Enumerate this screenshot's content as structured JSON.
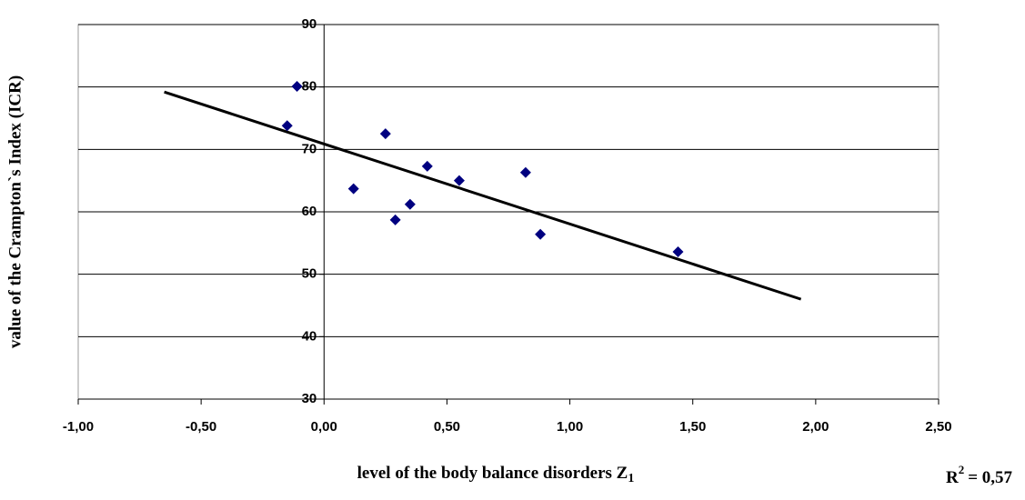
{
  "chart_data": {
    "type": "scatter",
    "x_label": "level of the body balance disorders Z",
    "x_label_subscript": "1",
    "y_label": "value of the Crampton`s Index (ICR)",
    "annotation": {
      "text": "R",
      "superscript": "2",
      "rest": "= 0,57"
    },
    "x": [
      -0.11,
      -0.15,
      0.12,
      0.25,
      0.29,
      0.35,
      0.42,
      0.55,
      0.82,
      0.88,
      1.44
    ],
    "series": [
      {
        "color": "#000080",
        "values": [
          80.1,
          73.8,
          63.7,
          72.5,
          58.7,
          61.2,
          67.3,
          65,
          66.3,
          56.4,
          53.6
        ]
      }
    ],
    "trendline": {
      "color": "#000000",
      "x": [
        -0.65,
        1.94
      ],
      "y": [
        79.2,
        46
      ]
    },
    "xlim": [
      -1,
      2.5
    ],
    "ylim": [
      30,
      90
    ],
    "xticks": [
      {
        "value": -1,
        "label": "-1,00"
      },
      {
        "value": -0.5,
        "label": "-0,50"
      },
      {
        "value": 0,
        "label": "0,00"
      },
      {
        "value": 0.5,
        "label": "0,50"
      },
      {
        "value": 1,
        "label": "1,00"
      },
      {
        "value": 1.5,
        "label": "1,50"
      },
      {
        "value": 2,
        "label": "2,00"
      },
      {
        "value": 2.5,
        "label": "2,50"
      }
    ],
    "yticks": [
      30,
      40,
      50,
      60,
      70,
      80,
      90
    ],
    "grid": true
  }
}
